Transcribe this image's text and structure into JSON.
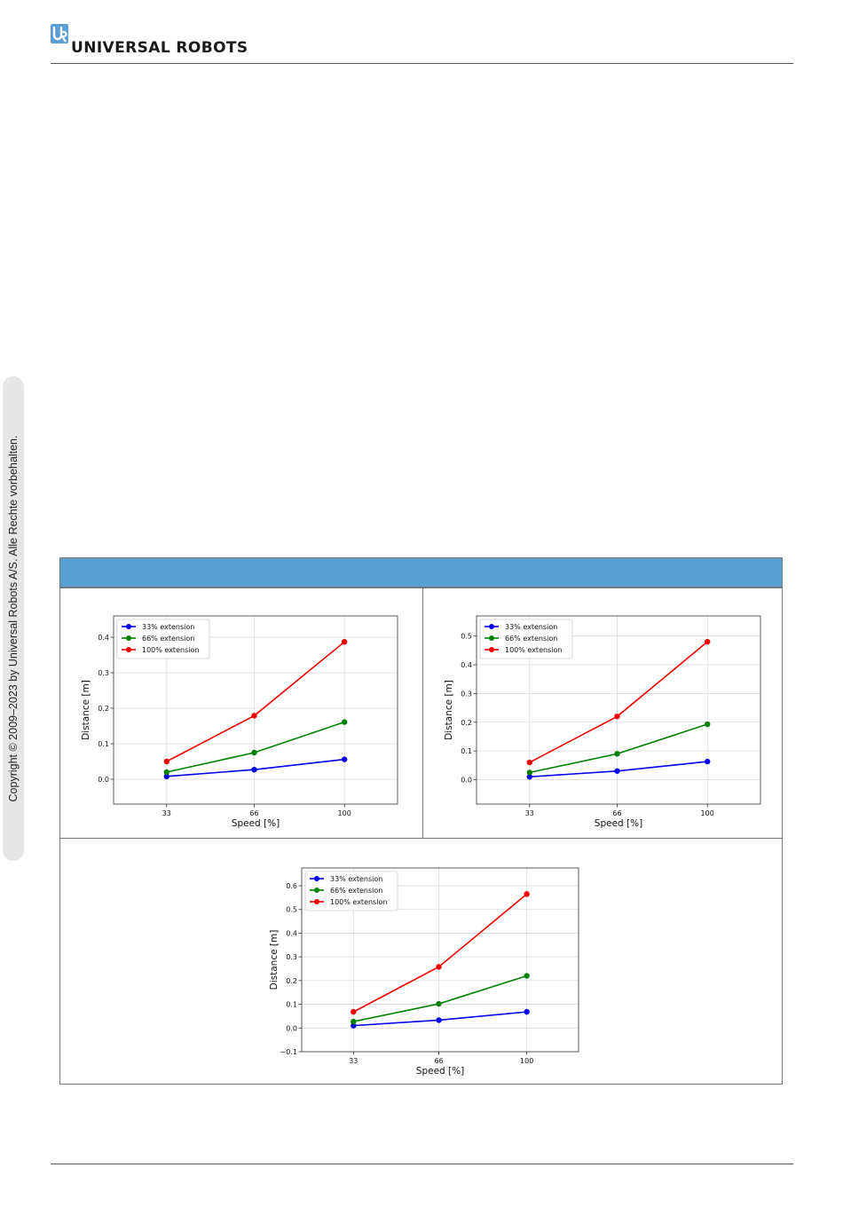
{
  "header": {
    "brand": "UNIVERSAL ROBOTS",
    "logo_icon": "ur-logo-icon"
  },
  "sidebar": {
    "copyright": "Copyright © 2009–2023 by Universal Robots A/S. Alle Rechte vorbehalten."
  },
  "table": {
    "header_color": "#56a0d3"
  },
  "chart_data": [
    {
      "type": "line",
      "x": [
        33,
        66,
        100
      ],
      "xlabel": "Speed [%]",
      "ylabel": "Distance [m]",
      "xlim": [
        13,
        120
      ],
      "ylim": [
        -0.07,
        0.46
      ],
      "yticks": [
        0.0,
        0.1,
        0.2,
        0.3,
        0.4
      ],
      "grid": true,
      "legend": "top-left",
      "series": [
        {
          "name": "33% extension",
          "color": "#0000ee",
          "values": [
            0.008,
            0.027,
            0.056
          ]
        },
        {
          "name": "66% extension",
          "color": "#008000",
          "values": [
            0.02,
            0.075,
            0.161
          ]
        },
        {
          "name": "100% extension",
          "color": "#ee0000",
          "values": [
            0.05,
            0.179,
            0.387
          ]
        }
      ]
    },
    {
      "type": "line",
      "x": [
        33,
        66,
        100
      ],
      "xlabel": "Speed [%]",
      "ylabel": "Distance [m]",
      "xlim": [
        13,
        120
      ],
      "ylim": [
        -0.085,
        0.57
      ],
      "yticks": [
        0.0,
        0.1,
        0.2,
        0.3,
        0.4,
        0.5
      ],
      "grid": true,
      "legend": "top-left",
      "series": [
        {
          "name": "33% extension",
          "color": "#0000ee",
          "values": [
            0.01,
            0.03,
            0.063
          ]
        },
        {
          "name": "66% extension",
          "color": "#008000",
          "values": [
            0.025,
            0.09,
            0.193
          ]
        },
        {
          "name": "100% extension",
          "color": "#ee0000",
          "values": [
            0.06,
            0.22,
            0.48
          ]
        }
      ]
    },
    {
      "type": "line",
      "x": [
        33,
        66,
        100
      ],
      "xlabel": "Speed [%]",
      "ylabel": "Distance [m]",
      "xlim": [
        13,
        120
      ],
      "ylim": [
        -0.1,
        0.675
      ],
      "yticks": [
        -0.1,
        0.0,
        0.1,
        0.2,
        0.3,
        0.4,
        0.5,
        0.6
      ],
      "grid": true,
      "legend": "top-left",
      "series": [
        {
          "name": "33% extension",
          "color": "#0000ee",
          "values": [
            0.01,
            0.033,
            0.068
          ]
        },
        {
          "name": "66% extension",
          "color": "#008000",
          "values": [
            0.027,
            0.102,
            0.22
          ]
        },
        {
          "name": "100% extension",
          "color": "#ee0000",
          "values": [
            0.068,
            0.258,
            0.565
          ]
        }
      ]
    }
  ]
}
